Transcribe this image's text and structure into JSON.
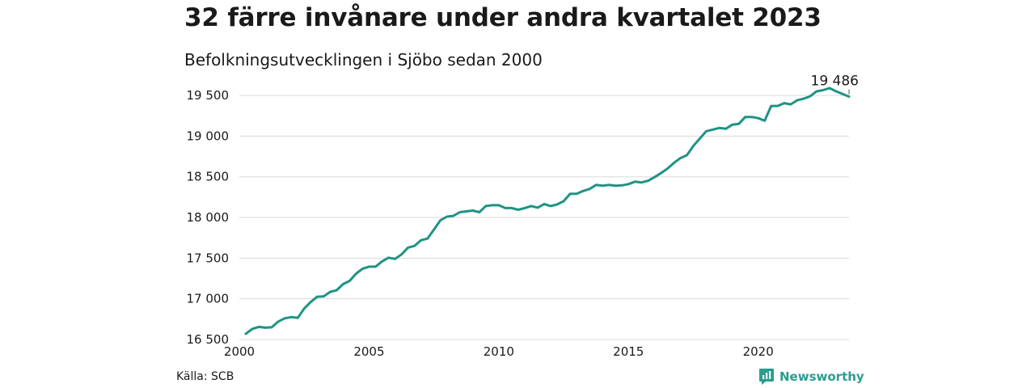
{
  "title": "32 färre invånare under andra kvartalet 2023",
  "subtitle": "Befolkningsutvecklingen i Sjöbo sedan 2000",
  "source": "Källa: SCB",
  "brand": {
    "name": "Newsworthy",
    "icon": "newsworthy-logo-icon",
    "color": "#2a9d8f"
  },
  "colors": {
    "line": "#1f9384",
    "grid": "#d9d9d9"
  },
  "chart_data": {
    "type": "line",
    "title": "",
    "xlabel": "",
    "ylabel": "",
    "xlim": [
      2000,
      2023.5
    ],
    "ylim": [
      16450,
      19600
    ],
    "grid": "horizontal",
    "x_ticks": [
      2000,
      2005,
      2010,
      2015,
      2020
    ],
    "x_tick_labels": [
      "2000",
      "2005",
      "2010",
      "2015",
      "2020"
    ],
    "y_ticks": [
      16500,
      17000,
      17500,
      18000,
      18500,
      19000,
      19500
    ],
    "y_tick_labels": [
      "16 500",
      "17 000",
      "17 500",
      "18 000",
      "18 500",
      "19 000",
      "19 500"
    ],
    "end_label": "19 486",
    "series": [
      {
        "x_start": 2000.25,
        "x_step": 0.25,
        "values": [
          16570,
          16630,
          16655,
          16645,
          16650,
          16720,
          16760,
          16775,
          16765,
          16880,
          16960,
          17025,
          17030,
          17085,
          17105,
          17180,
          17220,
          17310,
          17370,
          17395,
          17395,
          17460,
          17505,
          17490,
          17545,
          17630,
          17650,
          17720,
          17740,
          17850,
          17965,
          18010,
          18020,
          18065,
          18075,
          18085,
          18065,
          18140,
          18150,
          18150,
          18115,
          18115,
          18095,
          18115,
          18140,
          18120,
          18165,
          18140,
          18160,
          18200,
          18290,
          18290,
          18325,
          18350,
          18400,
          18390,
          18400,
          18390,
          18395,
          18410,
          18440,
          18430,
          18450,
          18495,
          18545,
          18600,
          18670,
          18730,
          18765,
          18880,
          18970,
          19060,
          19080,
          19100,
          19090,
          19140,
          19150,
          19235,
          19235,
          19220,
          19190,
          19370,
          19370,
          19405,
          19390,
          19440,
          19460,
          19490,
          19550,
          19565,
          19590,
          19550,
          19518,
          19486
        ]
      }
    ]
  }
}
